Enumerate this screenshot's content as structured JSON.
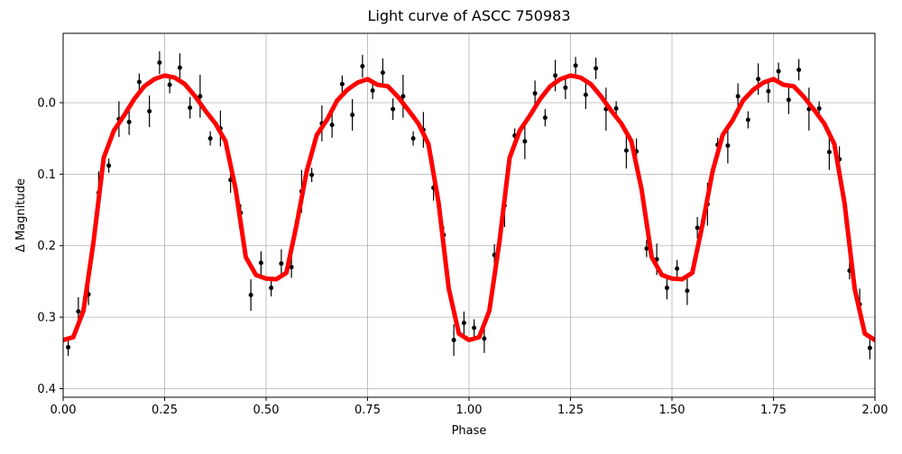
{
  "chart_data": {
    "type": "scatter",
    "title": "Light curve of ASCC 750983",
    "xlabel": "Phase",
    "ylabel": "Δ Magnitude",
    "xlim": [
      0,
      2
    ],
    "ylim": [
      -0.097,
      0.412
    ],
    "y_inverted": true,
    "grid": true,
    "xticks": [
      {
        "value": 0,
        "label": "0.00"
      },
      {
        "value": 0.25,
        "label": "0.25"
      },
      {
        "value": 0.5,
        "label": "0.50"
      },
      {
        "value": 0.75,
        "label": "0.75"
      },
      {
        "value": 1,
        "label": "1.00"
      },
      {
        "value": 1.25,
        "label": "1.25"
      },
      {
        "value": 1.5,
        "label": "1.50"
      },
      {
        "value": 1.75,
        "label": "1.75"
      },
      {
        "value": 2,
        "label": "2.00"
      }
    ],
    "yticks": [
      {
        "value": 0,
        "label": "0.0"
      },
      {
        "value": 0.1,
        "label": "0.1"
      },
      {
        "value": 0.2,
        "label": "0.2"
      },
      {
        "value": 0.3,
        "label": "0.3"
      },
      {
        "value": 0.4,
        "label": "0.4"
      }
    ],
    "series": [
      {
        "kind": "errorbar",
        "color": "#000000",
        "x": [
          0.0125,
          0.0375,
          0.0625,
          0.0875,
          0.1125,
          0.1375,
          0.1625,
          0.1875,
          0.2125,
          0.2375,
          0.2625,
          0.2875,
          0.3125,
          0.3375,
          0.3625,
          0.3875,
          0.4125,
          0.4375,
          0.4625,
          0.4875,
          0.5125,
          0.5375,
          0.5625,
          0.5875,
          0.6125,
          0.6375,
          0.6625,
          0.6875,
          0.7125,
          0.7375,
          0.7625,
          0.7875,
          0.8125,
          0.8375,
          0.8625,
          0.8875,
          0.9125,
          0.9375,
          0.9625,
          0.9875,
          1.0125,
          1.0375,
          1.0625,
          1.0875,
          1.1125,
          1.1375,
          1.1625,
          1.1875,
          1.2125,
          1.2375,
          1.2625,
          1.2875,
          1.3125,
          1.3375,
          1.3625,
          1.3875,
          1.4125,
          1.4375,
          1.4625,
          1.4875,
          1.5125,
          1.5375,
          1.5625,
          1.5875,
          1.6125,
          1.6375,
          1.6625,
          1.6875,
          1.7125,
          1.7375,
          1.7625,
          1.7875,
          1.8125,
          1.8375,
          1.8625,
          1.8875,
          1.9125,
          1.9375,
          1.9625,
          1.9875
        ],
        "values": [
          0.342,
          0.292,
          0.268,
          0.126,
          0.088,
          0.023,
          0.027,
          -0.029,
          0.012,
          -0.056,
          -0.025,
          -0.049,
          0.007,
          -0.009,
          0.05,
          0.036,
          0.108,
          0.154,
          0.269,
          0.224,
          0.259,
          0.225,
          0.23,
          0.124,
          0.101,
          0.029,
          0.031,
          -0.026,
          0.017,
          -0.051,
          -0.017,
          -0.042,
          0.009,
          -0.009,
          0.05,
          0.038,
          0.119,
          0.185,
          0.332,
          0.308,
          0.315,
          0.33,
          0.213,
          0.144,
          0.046,
          0.054,
          -0.013,
          0.021,
          -0.038,
          -0.021,
          -0.052,
          -0.011,
          -0.048,
          0.009,
          0.008,
          0.067,
          0.068,
          0.204,
          0.219,
          0.259,
          0.232,
          0.263,
          0.175,
          0.142,
          0.059,
          0.06,
          -0.009,
          0.024,
          -0.033,
          -0.016,
          -0.044,
          -0.004,
          -0.046,
          0.009,
          0.008,
          0.069,
          0.079,
          0.235,
          0.282,
          0.343
        ],
        "errors": [
          0.012,
          0.02,
          0.015,
          0.03,
          0.01,
          0.025,
          0.018,
          0.012,
          0.022,
          0.016,
          0.012,
          0.02,
          0.015,
          0.03,
          0.01,
          0.025,
          0.018,
          0.012,
          0.022,
          0.016,
          0.012,
          0.02,
          0.015,
          0.03,
          0.01,
          0.025,
          0.018,
          0.012,
          0.022,
          0.016,
          0.012,
          0.02,
          0.015,
          0.03,
          0.01,
          0.025,
          0.018,
          0.012,
          0.022,
          0.016,
          0.012,
          0.02,
          0.015,
          0.03,
          0.01,
          0.025,
          0.018,
          0.012,
          0.022,
          0.016,
          0.012,
          0.02,
          0.015,
          0.03,
          0.01,
          0.025,
          0.018,
          0.012,
          0.022,
          0.016,
          0.012,
          0.02,
          0.015,
          0.03,
          0.01,
          0.025,
          0.018,
          0.012,
          0.022,
          0.016,
          0.012,
          0.02,
          0.015,
          0.03,
          0.01,
          0.025,
          0.018,
          0.012,
          0.022,
          0.016
        ]
      },
      {
        "kind": "line",
        "color": "#ff0000",
        "x": [
          0,
          0.025,
          0.05,
          0.075,
          0.1,
          0.125,
          0.15,
          0.175,
          0.2,
          0.225,
          0.25,
          0.275,
          0.3,
          0.325,
          0.35,
          0.375,
          0.4,
          0.425,
          0.45,
          0.475,
          0.5,
          0.525,
          0.55,
          0.575,
          0.6,
          0.625,
          0.65,
          0.675,
          0.7,
          0.725,
          0.75,
          0.775,
          0.8,
          0.825,
          0.85,
          0.875,
          0.9,
          0.925,
          0.95,
          0.975,
          1,
          1.025,
          1.05,
          1.075,
          1.1,
          1.125,
          1.15,
          1.175,
          1.2,
          1.225,
          1.25,
          1.275,
          1.3,
          1.325,
          1.35,
          1.375,
          1.4,
          1.425,
          1.45,
          1.475,
          1.5,
          1.525,
          1.55,
          1.575,
          1.6,
          1.625,
          1.65,
          1.675,
          1.7,
          1.725,
          1.75,
          1.775,
          1.8,
          1.825,
          1.85,
          1.875,
          1.9,
          1.925,
          1.95,
          1.975,
          2
        ],
        "values": [
          0.332,
          0.328,
          0.291,
          0.194,
          0.077,
          0.039,
          0.018,
          -0.005,
          -0.023,
          -0.033,
          -0.038,
          -0.035,
          -0.026,
          -0.009,
          0.011,
          0.029,
          0.054,
          0.121,
          0.216,
          0.241,
          0.246,
          0.247,
          0.238,
          0.171,
          0.096,
          0.045,
          0.024,
          -0.003,
          -0.018,
          -0.028,
          -0.033,
          -0.025,
          -0.023,
          -0.008,
          0.01,
          0.029,
          0.058,
          0.14,
          0.26,
          0.323,
          0.332,
          0.328,
          0.291,
          0.194,
          0.077,
          0.039,
          0.018,
          -0.005,
          -0.023,
          -0.033,
          -0.038,
          -0.035,
          -0.026,
          -0.009,
          0.011,
          0.029,
          0.054,
          0.121,
          0.216,
          0.241,
          0.246,
          0.247,
          0.238,
          0.171,
          0.096,
          0.045,
          0.024,
          -0.003,
          -0.018,
          -0.028,
          -0.033,
          -0.025,
          -0.023,
          -0.008,
          0.01,
          0.029,
          0.058,
          0.14,
          0.26,
          0.323,
          0.332
        ]
      }
    ]
  }
}
